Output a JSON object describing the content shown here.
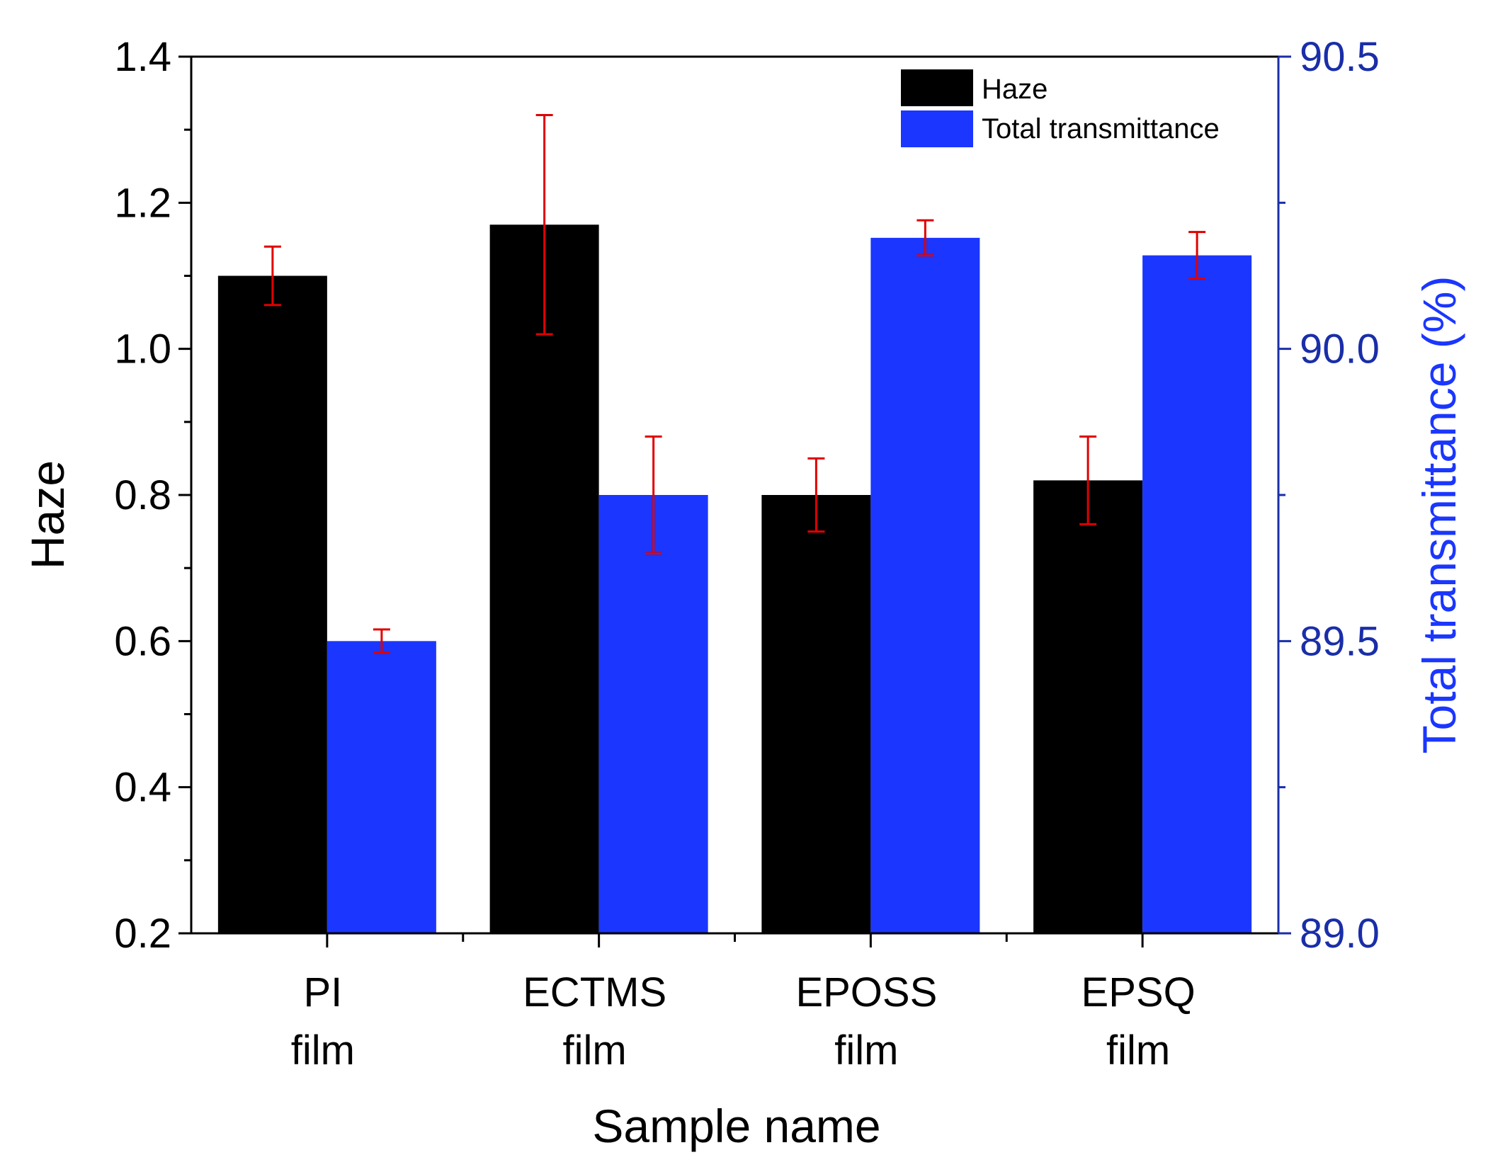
{
  "chart_data": {
    "type": "bar",
    "title": "",
    "categories": [
      {
        "line1": "PI",
        "line2": "film"
      },
      {
        "line1": "ECTMS",
        "line2": "film"
      },
      {
        "line1": "EPOSS",
        "line2": "film"
      },
      {
        "line1": "EPSQ",
        "line2": "film"
      }
    ],
    "xlabel": "Sample name",
    "ylabel": "Haze",
    "y2label": "Total transmittance (%)",
    "ylim": [
      0.2,
      1.4
    ],
    "y2lim": [
      89.0,
      90.5
    ],
    "yticks": [
      "0.2",
      "0.4",
      "0.6",
      "0.8",
      "1.0",
      "1.2",
      "1.4"
    ],
    "y2ticks": [
      "89.0",
      "89.5",
      "90.0",
      "90.5"
    ],
    "legend_position": "top-right",
    "series": [
      {
        "name": "Haze",
        "axis": "left",
        "color": "#000000",
        "values": [
          1.1,
          1.17,
          0.8,
          0.82
        ],
        "errors": [
          0.04,
          0.15,
          0.05,
          0.06
        ]
      },
      {
        "name": "Total transmittance",
        "axis": "right",
        "color": "#1a36ff",
        "values": [
          89.5,
          89.75,
          90.19,
          90.16
        ],
        "errors": [
          0.02,
          0.1,
          0.03,
          0.04
        ]
      }
    ],
    "error_bar_color": "#e00000",
    "axis_right_color": "#1a2ea8",
    "title_right_color": "#1a36ff"
  }
}
